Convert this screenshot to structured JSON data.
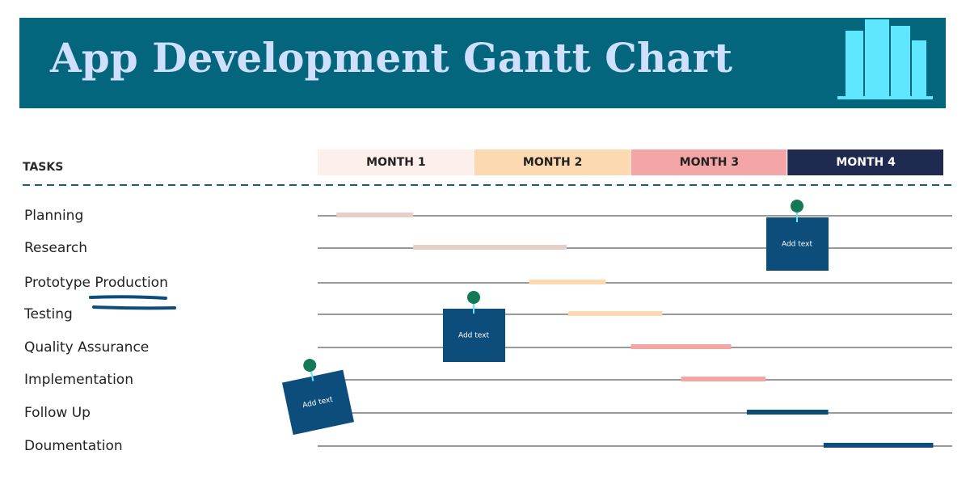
{
  "chart_data": {
    "type": "gantt",
    "title": "App Development Gantt Chart",
    "tasks_label": "TASKS",
    "months": [
      {
        "name": "MONTH 1",
        "color": "#fdf0ec",
        "text_color": "#222222"
      },
      {
        "name": "MONTH 2",
        "color": "#fcd9b0",
        "text_color": "#222222"
      },
      {
        "name": "MONTH 3",
        "color": "#f4a5a5",
        "text_color": "#222222"
      },
      {
        "name": "MONTH 4",
        "color": "#1e2a50",
        "text_color": "#ffffff"
      }
    ],
    "xlim": [
      0,
      4
    ],
    "categories": [
      "Planning",
      "Research",
      "Prototype Production",
      "Testing",
      "Quality Assurance",
      "Implementation",
      "Follow Up",
      "Doumentation"
    ],
    "start": [
      0.12,
      0.61,
      1.35,
      1.6,
      2.0,
      2.32,
      2.74,
      3.23
    ],
    "end": [
      0.61,
      1.59,
      1.84,
      2.2,
      2.64,
      2.86,
      3.26,
      3.93
    ],
    "colors": [
      "#e5cfc8",
      "#e5cfc8",
      "#fcd9b0",
      "#fcd9b0",
      "#f4a5a5",
      "#f4a5a5",
      "#0d4d7c",
      "#0d4d7c"
    ],
    "notes": [
      "Add text",
      "Add text",
      "Add text"
    ]
  }
}
